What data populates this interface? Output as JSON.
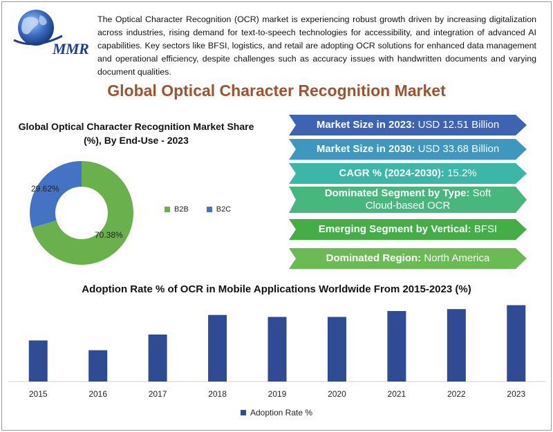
{
  "logo": {
    "text": "MMR"
  },
  "intro": "The Optical Character Recognition (OCR) market is experiencing robust growth driven by increasing digitalization across industries, rising demand for text-to-speech technologies for accessibility, and integration of advanced AI capabilities. Key sectors like BFSI, logistics, and retail are adopting OCR solutions for enhanced data management and operational efficiency, despite challenges such as accuracy issues with handwritten documents and varying document qualities.",
  "main_title": "Global Optical Character Recognition Market",
  "stats": [
    {
      "label": "Market Size in 2023:",
      "value": "USD 12.51 Billion",
      "color": "#3e63b3"
    },
    {
      "label": "Market Size in 2030:",
      "value": "USD 33.68 Billion",
      "color": "#3d97bf"
    },
    {
      "label": "CAGR % (2024-2030):",
      "value": "15.2%",
      "color": "#3cb6a6"
    },
    {
      "label": "Dominated Segment by Type:",
      "value": "Soft Cloud-based OCR",
      "color": "#48b77d"
    },
    {
      "label": "Emerging Segment by Vertical:",
      "value": "BFSI",
      "color": "#44ae46"
    },
    {
      "label": "Dominated Region:",
      "value": "North America",
      "color": "#6bbb55"
    }
  ],
  "chart_data": [
    {
      "type": "pie",
      "title": "Global Optical Character Recognition Market Share (%), By End-Use - 2023",
      "categories": [
        "B2B",
        "B2C"
      ],
      "values": [
        70.38,
        29.62
      ],
      "value_labels": [
        "70.38%",
        "29.62%"
      ],
      "colors": [
        "#6ab04c",
        "#4472c4"
      ],
      "donut": true,
      "legend": "right"
    },
    {
      "type": "bar",
      "title": "Adoption Rate % of OCR in Mobile Applications Worldwide From 2015-2023 (%)",
      "categories": [
        "2015",
        "2016",
        "2017",
        "2018",
        "2019",
        "2020",
        "2021",
        "2022",
        "2023"
      ],
      "series": [
        {
          "name": "Adoption Rate %",
          "values": [
            21,
            16,
            24,
            34,
            33,
            33,
            36,
            37,
            39
          ]
        }
      ],
      "ylim": [
        0,
        42
      ],
      "color": "#2f4b93",
      "legend": "bottom",
      "grid": false
    }
  ]
}
